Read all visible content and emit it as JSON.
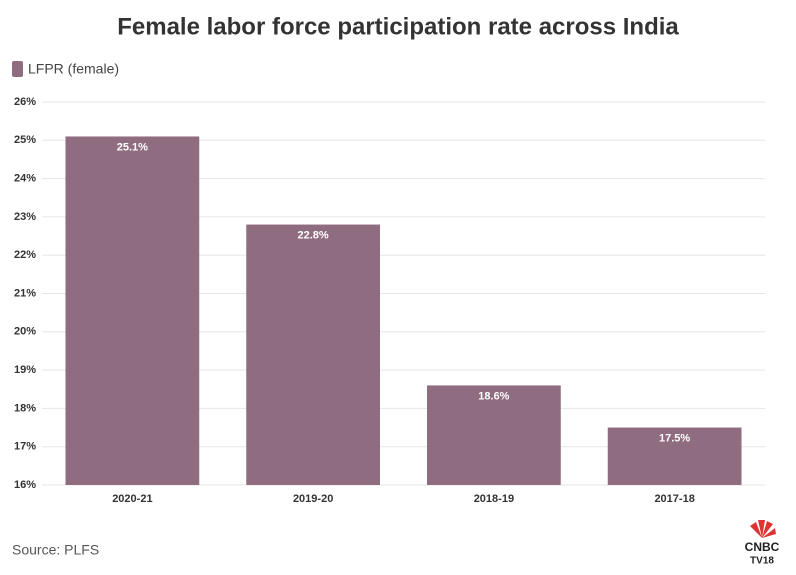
{
  "chart_data": {
    "type": "bar",
    "title": "Female labor force participation rate across India",
    "series": [
      {
        "name": "LFPR (female)",
        "color": "#8f6c7f",
        "values": [
          25.1,
          22.8,
          18.6,
          17.5
        ],
        "value_labels": [
          "25.1%",
          "22.8%",
          "18.6%",
          "17.5%"
        ]
      }
    ],
    "categories": [
      "2020-21",
      "2019-20",
      "2018-19",
      "2017-18"
    ],
    "ylim": [
      16,
      26
    ],
    "yticks": [
      {
        "value": 16,
        "label": "16%"
      },
      {
        "value": 17,
        "label": "17%"
      },
      {
        "value": 18,
        "label": "18%"
      },
      {
        "value": 19,
        "label": "19%"
      },
      {
        "value": 20,
        "label": "20%"
      },
      {
        "value": 21,
        "label": "21%"
      },
      {
        "value": 22,
        "label": "22%"
      },
      {
        "value": 23,
        "label": "23%"
      },
      {
        "value": 24,
        "label": "24%"
      },
      {
        "value": 25,
        "label": "25%"
      },
      {
        "value": 26,
        "label": "26%"
      }
    ],
    "grid": true,
    "legend": "top-left",
    "source": "Source: PLFS",
    "logo": {
      "line1": "CNBC",
      "line2": "TV18"
    }
  }
}
